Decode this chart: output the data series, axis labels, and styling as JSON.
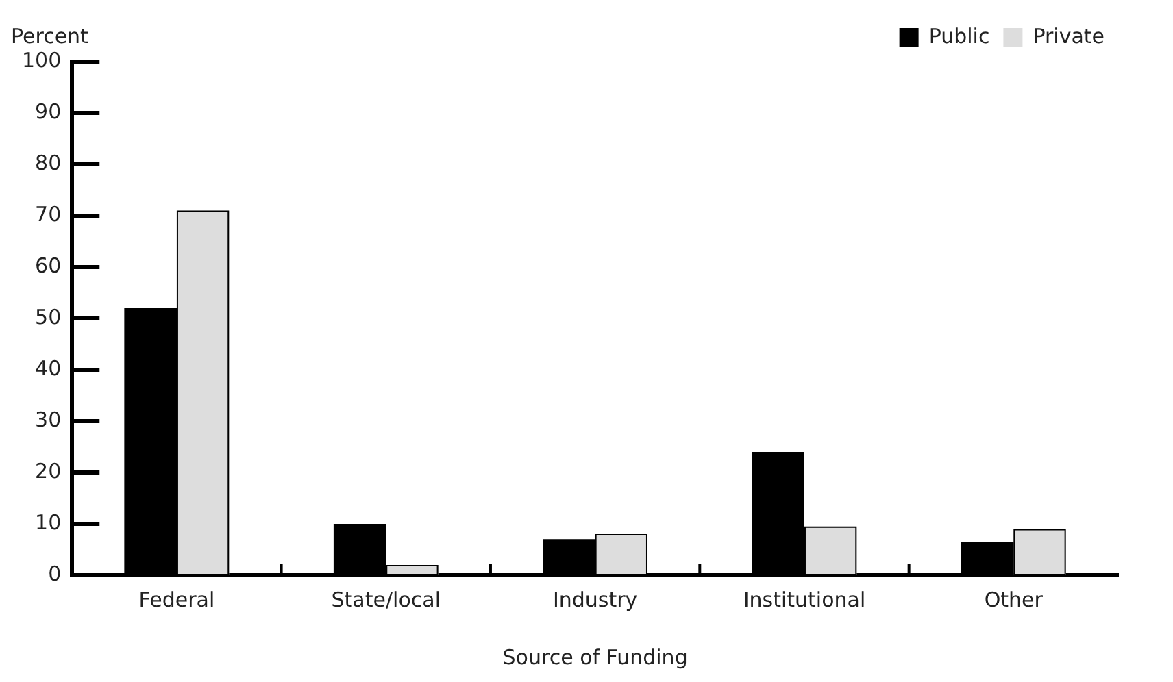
{
  "chart_data": {
    "type": "bar",
    "ylabel": "Percent",
    "xlabel": "Source of Funding",
    "categories": [
      "Federal",
      "State/local",
      "Industry",
      "Institutional",
      "Other"
    ],
    "series": [
      {
        "name": "Public",
        "color": "#000000",
        "values": [
          52,
          10,
          7,
          24,
          6.5
        ]
      },
      {
        "name": "Private",
        "color": "#dddddd",
        "values": [
          71,
          2,
          8,
          9.5,
          9
        ]
      }
    ],
    "ylim": [
      0,
      100
    ],
    "yticks": [
      0,
      10,
      20,
      30,
      40,
      50,
      60,
      70,
      80,
      90,
      100
    ],
    "grid": false,
    "legend": "top right"
  }
}
